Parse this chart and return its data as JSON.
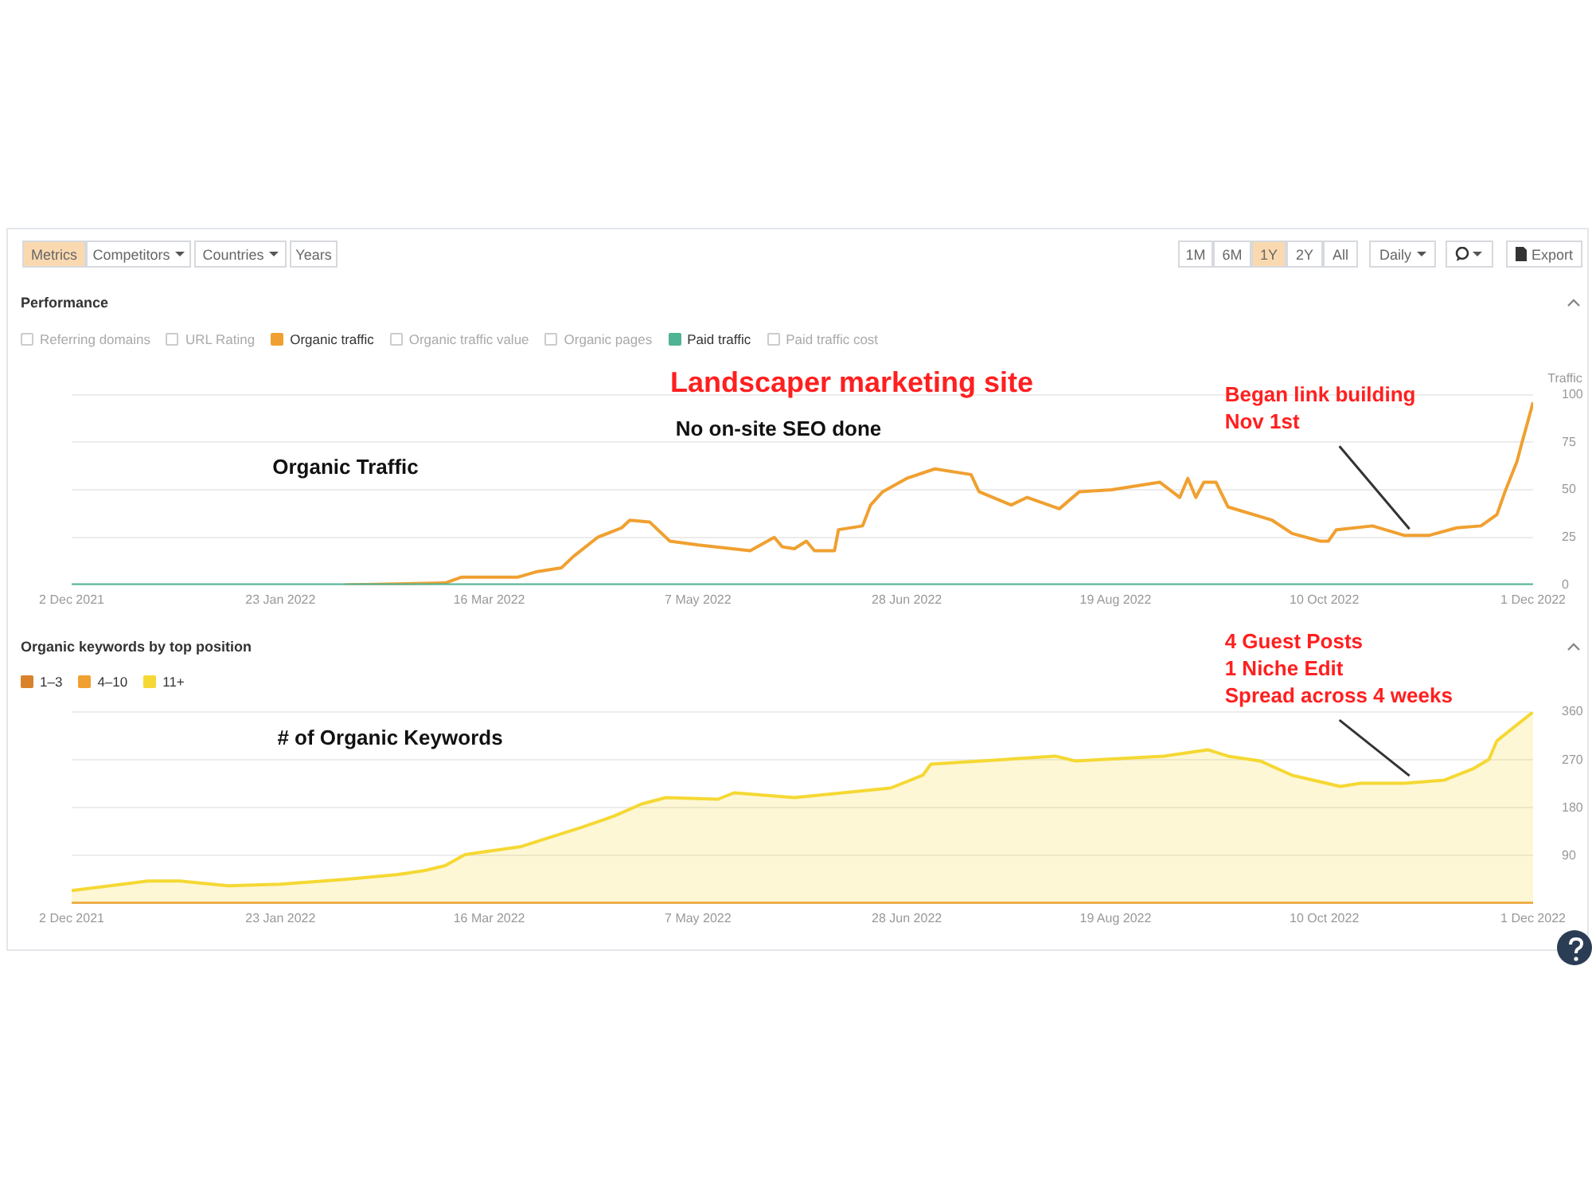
{
  "chart_data": [
    {
      "type": "other",
      "annotations": [
        "Metrics",
        "Competitors",
        "Countries",
        "Years",
        "1M",
        "6M",
        "1Y",
        "2Y",
        "All",
        "Daily",
        "Export"
      ]
    },
    {
      "type": "line",
      "title": "Performance",
      "ylabel": "Traffic",
      "legend": "top left",
      "grid": "y",
      "xlim": [
        "2021-12-02",
        "2022-12-01"
      ],
      "xticks": [
        {
          "value": "2021-12-02",
          "label": "2 Dec 2021"
        },
        {
          "value": "2022-01-23",
          "label": "23 Jan 2022"
        },
        {
          "value": "2022-03-16",
          "label": "16 Mar 2022"
        },
        {
          "value": "2022-05-07",
          "label": "7 May 2022"
        },
        {
          "value": "2022-06-28",
          "label": "28 Jun 2022"
        },
        {
          "value": "2022-08-19",
          "label": "19 Aug 2022"
        },
        {
          "value": "2022-10-10",
          "label": "10 Oct 2022"
        },
        {
          "value": "2022-12-01",
          "label": "1 Dec 2022"
        }
      ],
      "ylim": [
        0,
        100
      ],
      "yticks": [
        0,
        25,
        50,
        75,
        100
      ],
      "series": [
        {
          "name": "Referring domains"
        },
        {
          "name": "URL Rating"
        },
        {
          "name": "Organic traffic",
          "color": "#f0a030",
          "x": [
            "2022-02-08",
            "2022-03-05",
            "2022-03-09",
            "2022-03-23",
            "2022-03-28",
            "2022-04-03",
            "2022-04-06",
            "2022-04-12",
            "2022-04-18",
            "2022-04-20",
            "2022-04-25",
            "2022-04-30",
            "2022-05-07",
            "2022-05-20",
            "2022-05-26",
            "2022-05-28",
            "2022-05-31",
            "2022-06-03",
            "2022-06-05",
            "2022-06-10",
            "2022-06-11",
            "2022-06-17",
            "2022-06-19",
            "2022-06-22",
            "2022-06-28",
            "2022-07-05",
            "2022-07-14",
            "2022-07-16",
            "2022-07-24",
            "2022-07-28",
            "2022-08-05",
            "2022-08-10",
            "2022-08-18",
            "2022-08-30",
            "2022-09-04",
            "2022-09-06",
            "2022-09-08",
            "2022-09-10",
            "2022-09-13",
            "2022-09-16",
            "2022-09-27",
            "2022-10-02",
            "2022-10-09",
            "2022-10-11",
            "2022-10-13",
            "2022-10-22",
            "2022-10-30",
            "2022-11-05",
            "2022-11-12",
            "2022-11-18",
            "2022-11-22",
            "2022-11-24",
            "2022-11-27",
            "2022-11-28",
            "2022-12-01"
          ],
          "values": [
            0,
            1,
            4,
            4,
            7,
            9,
            15,
            25,
            30,
            34,
            33,
            23,
            21,
            18,
            25,
            20,
            19,
            23,
            18,
            18,
            29,
            31,
            42,
            49,
            56,
            61,
            58,
            49,
            42,
            46,
            40,
            49,
            50,
            54,
            46,
            56,
            46,
            54,
            54,
            41,
            34,
            27,
            23,
            23,
            29,
            31,
            26,
            26,
            30,
            31,
            37,
            49,
            65,
            73,
            96
          ]
        },
        {
          "name": "Organic traffic value"
        },
        {
          "name": "Organic pages"
        },
        {
          "name": "Paid traffic",
          "color": "#4fb395",
          "x": [
            "2021-12-02",
            "2022-12-01"
          ],
          "values": [
            0,
            0
          ]
        },
        {
          "name": "Paid traffic cost"
        }
      ],
      "annotations": [
        "Landscaper marketing site",
        "No on-site SEO done",
        "Organic Traffic",
        {
          "text": "Began link building\nNov 1st",
          "x": "2022-11-01",
          "y": 26
        }
      ]
    },
    {
      "type": "line",
      "title": "Organic keywords by top position",
      "legend": "top left",
      "grid": "y",
      "xlim": [
        "2021-12-02",
        "2022-12-01"
      ],
      "xticks": [
        {
          "value": "2021-12-02",
          "label": "2 Dec 2021"
        },
        {
          "value": "2022-01-23",
          "label": "23 Jan 2022"
        },
        {
          "value": "2022-03-16",
          "label": "16 Mar 2022"
        },
        {
          "value": "2022-05-07",
          "label": "7 May 2022"
        },
        {
          "value": "2022-06-28",
          "label": "28 Jun 2022"
        },
        {
          "value": "2022-08-19",
          "label": "19 Aug 2022"
        },
        {
          "value": "2022-10-10",
          "label": "10 Oct 2022"
        },
        {
          "value": "2022-12-01",
          "label": "1 Dec 2022"
        }
      ],
      "ylim": [
        0,
        360
      ],
      "yticks": [
        {
          "value": 0,
          "label": null
        },
        90,
        180,
        270,
        360
      ],
      "series": [
        {
          "name": "1–3",
          "color": "#d9822b",
          "x": [
            "2021-12-02",
            "2022-12-01"
          ],
          "values": [
            0,
            0
          ]
        },
        {
          "name": "4–10",
          "color": "#f0a030",
          "x": [
            "2021-12-02",
            "2022-12-01"
          ],
          "values": [
            0,
            0
          ]
        },
        {
          "name": "11+",
          "type": "area",
          "color": "#f5d833",
          "x": [
            "2021-12-02",
            "2021-12-21",
            "2021-12-29",
            "2022-01-10",
            "2022-01-23",
            "2022-02-08",
            "2022-02-21",
            "2022-02-28",
            "2022-03-05",
            "2022-03-10",
            "2022-03-24",
            "2022-04-08",
            "2022-04-16",
            "2022-04-23",
            "2022-04-29",
            "2022-05-12",
            "2022-05-16",
            "2022-05-31",
            "2022-06-24",
            "2022-07-02",
            "2022-07-04",
            "2022-07-23",
            "2022-08-04",
            "2022-08-09",
            "2022-08-31",
            "2022-09-11",
            "2022-09-16",
            "2022-09-24",
            "2022-10-02",
            "2022-10-14",
            "2022-10-19",
            "2022-10-30",
            "2022-11-09",
            "2022-11-16",
            "2022-11-20",
            "2022-11-22",
            "2022-12-01"
          ],
          "values": [
            24,
            42,
            42,
            33,
            36,
            45,
            54,
            62,
            71,
            92,
            107,
            143,
            164,
            187,
            199,
            196,
            208,
            199,
            217,
            241,
            262,
            271,
            277,
            268,
            277,
            289,
            277,
            268,
            241,
            220,
            226,
            226,
            232,
            253,
            271,
            306,
            360
          ]
        }
      ],
      "annotations": [
        "# of Organic Keywords",
        {
          "text": "4 Guest Posts\n1 Niche Edit\nSpread across 4 weeks",
          "x": "2022-11-01",
          "y": 228
        }
      ]
    }
  ]
}
